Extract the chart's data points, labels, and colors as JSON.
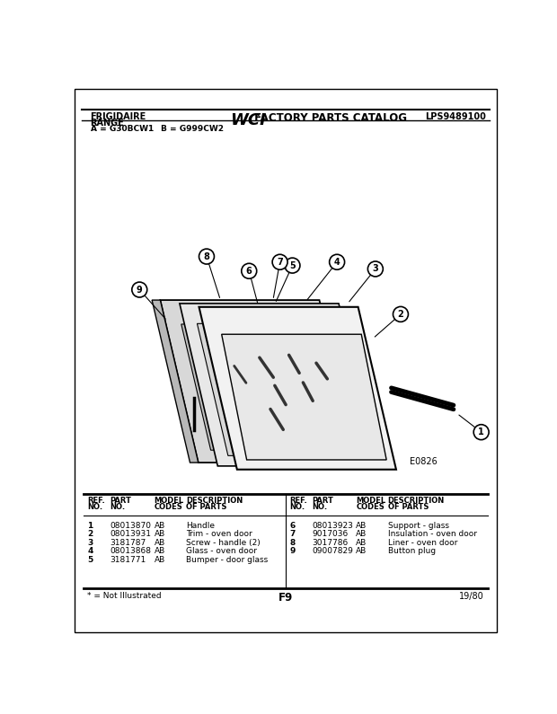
{
  "title_left1": "FRIGIDAIRE",
  "title_left2": "RANGE",
  "title_center_wci": "WCI",
  "title_center_rest": " FACTORY PARTS CATALOG",
  "title_right": "LPS9489100",
  "model_line1": "A = G30BCW1",
  "model_line2": "B = G999CW2",
  "diagram_code": "E0826",
  "page_label": "F9",
  "year_label": "19/80",
  "footnote": "* = Not Illustrated",
  "bg_color": "#ffffff",
  "table_headers_left": [
    "REF.",
    "PART",
    "MODEL",
    "DESCRIPTION"
  ],
  "table_headers_left2": [
    "NO.",
    "NO.",
    "CODES",
    "OF PARTS"
  ],
  "parts_left": [
    [
      "1",
      "08013870",
      "AB",
      "Handle"
    ],
    [
      "2",
      "08013931",
      "AB",
      "Trim - oven door"
    ],
    [
      "3",
      "3181787",
      "AB",
      "Screw - handle (2)"
    ],
    [
      "4",
      "08013868",
      "AB",
      "Glass - oven door"
    ],
    [
      "5",
      "3181771",
      "AB",
      "Bumper - door glass"
    ]
  ],
  "parts_right": [
    [
      "6",
      "08013923",
      "AB",
      "Support - glass"
    ],
    [
      "7",
      "9017036",
      "AB",
      "Insulation - oven door"
    ],
    [
      "8",
      "3017786",
      "AB",
      "Liner - oven door"
    ],
    [
      "9",
      "09007829",
      "AB",
      "Button plug"
    ]
  ]
}
